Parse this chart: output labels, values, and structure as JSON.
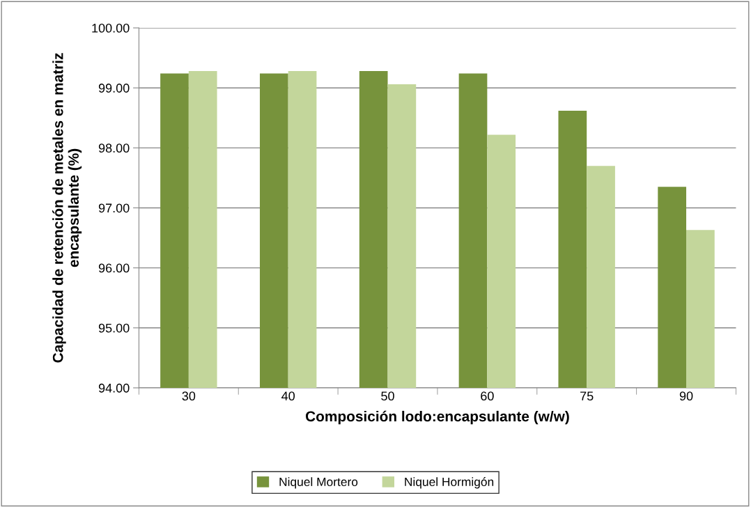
{
  "chart_data": {
    "type": "bar",
    "xlabel": "Composición lodo:encapsulante (w/w)",
    "ylabel": "Capacidad de retención de metales en matriz\nencapsulante (%)",
    "categories": [
      "30",
      "40",
      "50",
      "60",
      "75",
      "90"
    ],
    "series": [
      {
        "name": "Niquel Mortero",
        "color": "#77933c",
        "values": [
          99.24,
          99.24,
          99.28,
          99.24,
          98.62,
          97.35
        ]
      },
      {
        "name": "Niquel Hormigón",
        "color": "#c3d69b",
        "values": [
          99.28,
          99.28,
          99.06,
          98.22,
          97.7,
          96.63
        ]
      }
    ],
    "ylim": [
      94,
      100
    ],
    "yticks": [
      {
        "value": 94,
        "label": "94.00"
      },
      {
        "value": 95,
        "label": "95.00"
      },
      {
        "value": 96,
        "label": "96.00"
      },
      {
        "value": 97,
        "label": "97.00"
      },
      {
        "value": 98,
        "label": "98.00"
      },
      {
        "value": 99,
        "label": "99.00"
      },
      {
        "value": 100,
        "label": "100.00"
      }
    ],
    "grid": "y",
    "legend": "bottom"
  }
}
